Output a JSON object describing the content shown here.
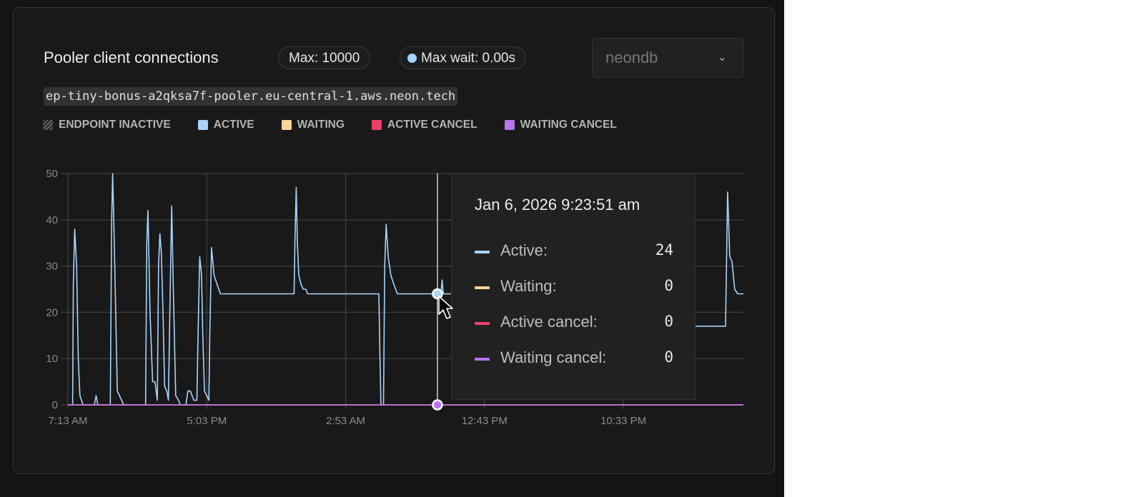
{
  "header": {
    "title": "Pooler client connections",
    "max_badge": "Max: 10000",
    "max_wait_badge": "Max wait: 0.00s",
    "database_select": "neondb",
    "hostname": "ep-tiny-bonus-a2qksa7f-pooler.eu-central-1.aws.neon.tech"
  },
  "legend": [
    {
      "label": "ENDPOINT INACTIVE",
      "color": "hatched"
    },
    {
      "label": "ACTIVE",
      "color": "#a8d4fb"
    },
    {
      "label": "WAITING",
      "color": "#fdd19a"
    },
    {
      "label": "ACTIVE CANCEL",
      "color": "#f0406a"
    },
    {
      "label": "WAITING CANCEL",
      "color": "#b974f0"
    }
  ],
  "tooltip": {
    "date": "Jan 6, 2026 9:23:51 am",
    "rows": [
      {
        "label": "Active:",
        "value": "24",
        "color": "#a8d4fb"
      },
      {
        "label": "Waiting:",
        "value": "0",
        "color": "#fdd19a"
      },
      {
        "label": "Active cancel:",
        "value": "0",
        "color": "#f0406a"
      },
      {
        "label": "Waiting cancel:",
        "value": "0",
        "color": "#b974f0"
      }
    ]
  },
  "chart_data": {
    "type": "line",
    "title": "",
    "xlabel": "",
    "ylabel": "",
    "xlim": [
      "2026-01-05T07:13",
      "2026-01-07T07:03"
    ],
    "ylim": [
      0,
      50
    ],
    "yticks": [
      0,
      10,
      20,
      30,
      40,
      50
    ],
    "xticks": [
      {
        "t": "2026-01-05T07:13",
        "label": "7:13 AM"
      },
      {
        "t": "2026-01-05T17:03",
        "label": "5:03 PM"
      },
      {
        "t": "2026-01-06T02:53",
        "label": "2:53 AM"
      },
      {
        "t": "2026-01-06T12:43",
        "label": "12:43 PM"
      },
      {
        "t": "2026-01-06T22:33",
        "label": "10:33 PM"
      }
    ],
    "grid": true,
    "hover_time": "2026-01-06T09:23",
    "series": [
      {
        "name": "Active",
        "color": "#a8d4fb",
        "points": [
          [
            "2026-01-05T07:13",
            0
          ],
          [
            "2026-01-05T07:33",
            0
          ],
          [
            "2026-01-05T07:36",
            26
          ],
          [
            "2026-01-05T07:42",
            38
          ],
          [
            "2026-01-05T07:50",
            30
          ],
          [
            "2026-01-05T07:57",
            10
          ],
          [
            "2026-01-05T08:04",
            2
          ],
          [
            "2026-01-05T08:17",
            0
          ],
          [
            "2026-01-05T09:05",
            0
          ],
          [
            "2026-01-05T09:13",
            2
          ],
          [
            "2026-01-05T09:20",
            0
          ],
          [
            "2026-01-05T10:13",
            0
          ],
          [
            "2026-01-05T10:19",
            40
          ],
          [
            "2026-01-05T10:23",
            50
          ],
          [
            "2026-01-05T10:30",
            35
          ],
          [
            "2026-01-05T10:43",
            3
          ],
          [
            "2026-01-05T11:01",
            1
          ],
          [
            "2026-01-05T11:10",
            0
          ],
          [
            "2026-01-05T12:43",
            0
          ],
          [
            "2026-01-05T12:48",
            35
          ],
          [
            "2026-01-05T12:53",
            42
          ],
          [
            "2026-01-05T13:02",
            20
          ],
          [
            "2026-01-05T13:13",
            5
          ],
          [
            "2026-01-05T13:23",
            5
          ],
          [
            "2026-01-05T13:28",
            3
          ],
          [
            "2026-01-05T13:33",
            1
          ],
          [
            "2026-01-05T13:38",
            30
          ],
          [
            "2026-01-05T13:44",
            37
          ],
          [
            "2026-01-05T13:50",
            33
          ],
          [
            "2026-01-05T13:57",
            20
          ],
          [
            "2026-01-05T14:04",
            4
          ],
          [
            "2026-01-05T14:13",
            3
          ],
          [
            "2026-01-05T14:20",
            1
          ],
          [
            "2026-01-05T14:26",
            20
          ],
          [
            "2026-01-05T14:34",
            43
          ],
          [
            "2026-01-05T14:41",
            25
          ],
          [
            "2026-01-05T14:51",
            2
          ],
          [
            "2026-01-05T15:03",
            1
          ],
          [
            "2026-01-05T15:10",
            0
          ],
          [
            "2026-01-05T15:34",
            0
          ],
          [
            "2026-01-05T15:43",
            3
          ],
          [
            "2026-01-05T15:53",
            3
          ],
          [
            "2026-01-05T16:08",
            1
          ],
          [
            "2026-01-05T16:21",
            1
          ],
          [
            "2026-01-05T16:28",
            20
          ],
          [
            "2026-01-05T16:33",
            32
          ],
          [
            "2026-01-05T16:41",
            28
          ],
          [
            "2026-01-05T16:46",
            15
          ],
          [
            "2026-01-05T16:53",
            3
          ],
          [
            "2026-01-05T17:12",
            1
          ],
          [
            "2026-01-05T17:16",
            15
          ],
          [
            "2026-01-05T17:23",
            34
          ],
          [
            "2026-01-05T17:34",
            28
          ],
          [
            "2026-01-05T17:47",
            26
          ],
          [
            "2026-01-05T18:01",
            24
          ],
          [
            "2026-01-05T23:14",
            24
          ],
          [
            "2026-01-05T23:18",
            36
          ],
          [
            "2026-01-05T23:23",
            47
          ],
          [
            "2026-01-05T23:28",
            35
          ],
          [
            "2026-01-05T23:34",
            28
          ],
          [
            "2026-01-05T23:44",
            26
          ],
          [
            "2026-01-05T23:53",
            25
          ],
          [
            "2026-01-06T00:04",
            25
          ],
          [
            "2026-01-06T00:11",
            24
          ],
          [
            "2026-01-06T05:14",
            24
          ],
          [
            "2026-01-06T05:19",
            10
          ],
          [
            "2026-01-06T05:23",
            0
          ],
          [
            "2026-01-06T05:34",
            0
          ],
          [
            "2026-01-06T05:39",
            30
          ],
          [
            "2026-01-06T05:45",
            39
          ],
          [
            "2026-01-06T05:54",
            32
          ],
          [
            "2026-01-06T06:05",
            28
          ],
          [
            "2026-01-06T06:18",
            26
          ],
          [
            "2026-01-06T06:33",
            24
          ],
          [
            "2026-01-06T09:23",
            24
          ],
          [
            "2026-01-06T09:38",
            24
          ],
          [
            "2026-01-06T09:43",
            27
          ],
          [
            "2026-01-06T09:48",
            24
          ],
          [
            "2026-01-06T20:00",
            24
          ],
          [
            "2026-01-06T20:03",
            17
          ],
          [
            "2026-01-07T05:47",
            17
          ],
          [
            "2026-01-07T05:56",
            46
          ],
          [
            "2026-01-07T06:05",
            32
          ],
          [
            "2026-01-07T06:14",
            31
          ],
          [
            "2026-01-07T06:26",
            25
          ],
          [
            "2026-01-07T06:39",
            24
          ],
          [
            "2026-01-07T07:03",
            24
          ]
        ]
      },
      {
        "name": "Waiting",
        "color": "#fdd19a",
        "points": [
          [
            "2026-01-05T07:13",
            0
          ],
          [
            "2026-01-07T07:03",
            0
          ]
        ]
      },
      {
        "name": "Active cancel",
        "color": "#f0406a",
        "points": [
          [
            "2026-01-05T07:13",
            0
          ],
          [
            "2026-01-07T07:03",
            0
          ]
        ]
      },
      {
        "name": "Waiting cancel",
        "color": "#b974f0",
        "points": [
          [
            "2026-01-05T07:13",
            0
          ],
          [
            "2026-01-07T07:03",
            0
          ]
        ]
      }
    ]
  }
}
